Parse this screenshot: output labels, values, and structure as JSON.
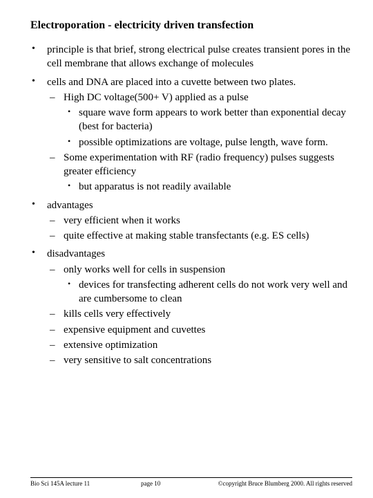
{
  "title": "Electroporation - electricity driven transfection",
  "bullets": {
    "b1": "principle is that brief, strong electrical pulse creates transient pores in the cell membrane that allows exchange of molecules",
    "b2": "cells and DNA are placed into a cuvette between two plates.",
    "b2s1": "High DC voltage(500+ V) applied as a pulse",
    "b2s1a": "square wave form appears to work better than exponential decay (best for bacteria)",
    "b2s1b": "possible optimizations are voltage, pulse length, wave form.",
    "b2s2": "Some experimentation with RF (radio frequency) pulses suggests greater efficiency",
    "b2s2a": "but apparatus is not readily available",
    "b3": "advantages",
    "b3s1": "very efficient when it works",
    "b3s2": "quite effective at making stable transfectants (e.g. ES cells)",
    "b4": "disadvantages",
    "b4s1": "only works well for cells in suspension",
    "b4s1a": "devices for transfecting adherent cells do not work very well and are cumbersome to clean",
    "b4s2": "kills cells very effectively",
    "b4s3": "expensive equipment and cuvettes",
    "b4s4": "extensive optimization",
    "b4s5": "very sensitive to salt concentrations"
  },
  "footer": {
    "left": "Bio Sci 145A lecture 11",
    "mid": "page 10",
    "right": "©copyright Bruce Blumberg 2000. All rights reserved"
  },
  "colors": {
    "text": "#000000",
    "background": "#ffffff",
    "rule": "#000000"
  },
  "typography": {
    "font_family": "Times New Roman",
    "title_size_pt": 12,
    "body_size_pt": 11,
    "footer_size_pt": 7,
    "title_weight": "bold"
  }
}
